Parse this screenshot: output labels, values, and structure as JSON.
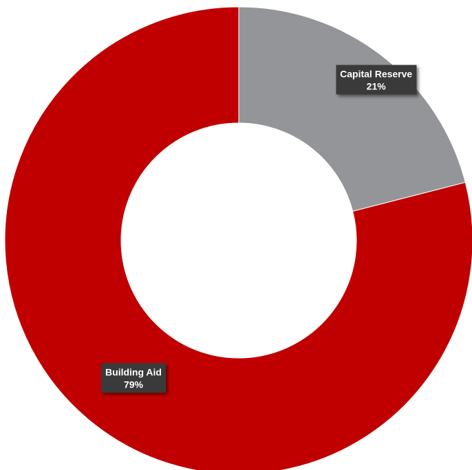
{
  "chart_data": {
    "type": "pie",
    "donut": true,
    "title": "",
    "legend": "none",
    "slices": [
      {
        "label": "Capital Reserve",
        "value": 21,
        "display": "21%",
        "color": "#939598"
      },
      {
        "label": "Building Aid",
        "value": 79,
        "display": "79%",
        "color": "#c00000"
      }
    ]
  }
}
